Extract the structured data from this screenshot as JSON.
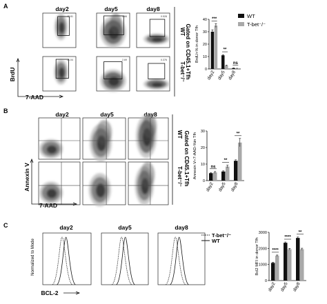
{
  "panels": {
    "A": {
      "letter": "A",
      "days": [
        "day2",
        "day5",
        "day8"
      ],
      "xaxis": "7-AAD",
      "yaxis": "BrdU",
      "rows": [
        "WT",
        "T-bet⁻/⁻"
      ],
      "gate_label": "Gated on CD45.1+Tfh",
      "gate_values": [
        [
          "43.81",
          "2.66",
          "0.528"
        ],
        [
          "21.04",
          "2.69",
          "0.376"
        ]
      ]
    },
    "B": {
      "letter": "B",
      "days": [
        "day2",
        "day5",
        "day8"
      ],
      "xaxis": "7-AAD",
      "yaxis": "Annexin V",
      "rows": [
        "WT",
        "T-bet⁻/⁻"
      ],
      "gate_label": "Gated on CD45.1+Tfh"
    },
    "C": {
      "letter": "C",
      "days": [
        "day2",
        "day5",
        "day8"
      ],
      "xaxis": "BCL-2",
      "yaxis": "Normalized to Mode",
      "legend": [
        "T-bet⁻/⁻",
        "WT"
      ]
    }
  },
  "legend": {
    "wt_label": "WT",
    "ko_label": "T-bet⁻/⁻",
    "wt_color": "#111111",
    "ko_color": "#a9a9a9"
  },
  "chart_data": [
    {
      "type": "bar",
      "panel": "A",
      "categories": [
        "day2",
        "day5",
        "day8"
      ],
      "ylabel": "BrdU+% in donor Tfh",
      "ylim": [
        0,
        40
      ],
      "yticks": [
        0,
        10,
        20,
        30,
        40
      ],
      "series": [
        {
          "name": "WT",
          "values": [
            30,
            11,
            0.6
          ],
          "errors": [
            1.5,
            0.6,
            0.2
          ]
        },
        {
          "name": "T-bet⁻/⁻",
          "values": [
            35,
            2.8,
            0.4
          ],
          "errors": [
            1.5,
            0.4,
            0.1
          ]
        }
      ],
      "significance": [
        "***",
        "**",
        "ns"
      ]
    },
    {
      "type": "bar",
      "panel": "B",
      "categories": [
        "day2",
        "day5",
        "day8"
      ],
      "ylabel": "Annexin V+7-AAD-%in Tfh",
      "ylim": [
        0,
        30
      ],
      "yticks": [
        0,
        10,
        20,
        30
      ],
      "series": [
        {
          "name": "WT",
          "values": [
            4.5,
            5.5,
            12
          ],
          "errors": [
            0.4,
            0.4,
            0.6
          ]
        },
        {
          "name": "T-bet⁻/⁻",
          "values": [
            5,
            8.5,
            23
          ],
          "errors": [
            0.5,
            0.8,
            2.5
          ]
        }
      ],
      "significance": [
        "ns",
        "**",
        "**"
      ]
    },
    {
      "type": "bar",
      "panel": "C",
      "categories": [
        "day2",
        "day5",
        "day8"
      ],
      "ylabel": "Bcl2 MFI in donor Tfh",
      "ylim": [
        0,
        3000
      ],
      "yticks": [
        0,
        1000,
        2000,
        3000
      ],
      "series": [
        {
          "name": "WT",
          "values": [
            1100,
            2350,
            2650
          ],
          "errors": [
            40,
            50,
            60
          ]
        },
        {
          "name": "T-bet⁻/⁻",
          "values": [
            1550,
            1950,
            1950
          ],
          "errors": [
            40,
            50,
            60
          ]
        }
      ],
      "significance": [
        "****",
        "****",
        "**"
      ]
    }
  ]
}
